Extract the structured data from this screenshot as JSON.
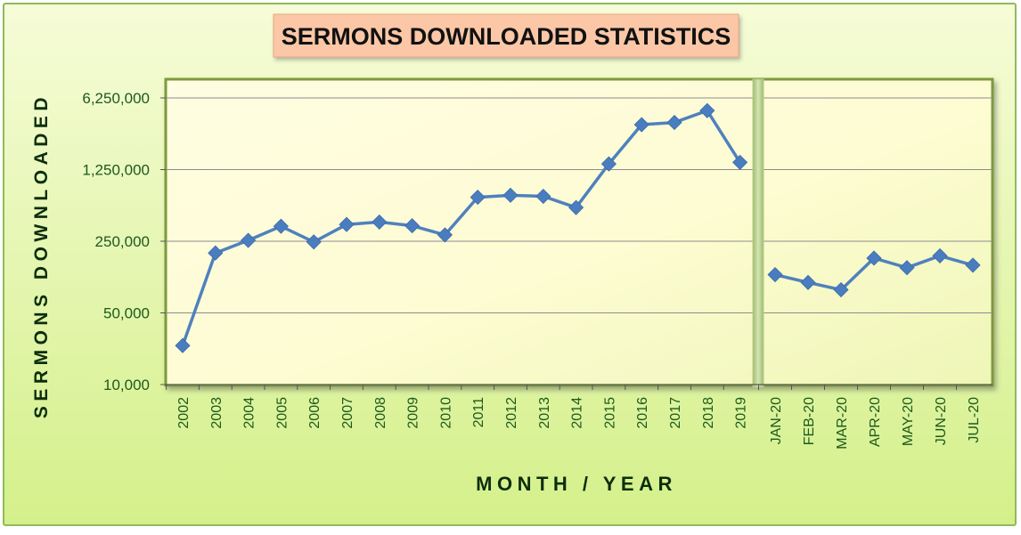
{
  "chart_data": {
    "type": "line",
    "title": "SERMONS DOWNLOADED STATISTICS",
    "xlabel": "MONTH / YEAR",
    "ylabel": "SERMONS DOWNLOADED",
    "y_scale": "log5",
    "ylim": [
      10000,
      6250000
    ],
    "y_ticks": [
      10000,
      50000,
      250000,
      1250000,
      6250000
    ],
    "y_tick_labels": [
      "10,000",
      "50,000",
      "250,000",
      "1,250,000",
      "6,250,000"
    ],
    "grid": true,
    "legend": "none",
    "colors": {
      "line": "#4f81bd",
      "marker": "#4a7dc0",
      "axis_text": "#1d5a1d",
      "axis_title": "#0d2e0d",
      "title_text": "#111111",
      "title_box": "#fbc7a6",
      "title_box_border": "#e8a880",
      "outer_bg_top": "#f6fcd8",
      "outer_bg_bottom": "#d4f08a",
      "outer_border": "#8fbb5a",
      "plot_bg": "#fdfcd2",
      "plot_border": "#7d9a3c",
      "separator": "#b5cc8a",
      "gridline": "#8c8c8c"
    },
    "segments": [
      {
        "categories": [
          "2002",
          "2003",
          "2004",
          "2005",
          "2006",
          "2007",
          "2008",
          "2009",
          "2010",
          "2011",
          "2012",
          "2013",
          "2014",
          "2015",
          "2016",
          "2017",
          "2018",
          "2019"
        ],
        "values": [
          24000,
          192000,
          255000,
          350000,
          246000,
          364000,
          385000,
          354000,
          288000,
          671000,
          702000,
          686000,
          533000,
          1420000,
          3430000,
          3600000,
          4700000,
          1470000
        ]
      },
      {
        "categories": [
          "JAN-20",
          "FEB-20",
          "MAR-20",
          "APR-20",
          "MAY-20",
          "JUN-20",
          "JUL-20"
        ],
        "values": [
          118000,
          99000,
          84000,
          171000,
          138000,
          180000,
          146000
        ]
      }
    ]
  }
}
